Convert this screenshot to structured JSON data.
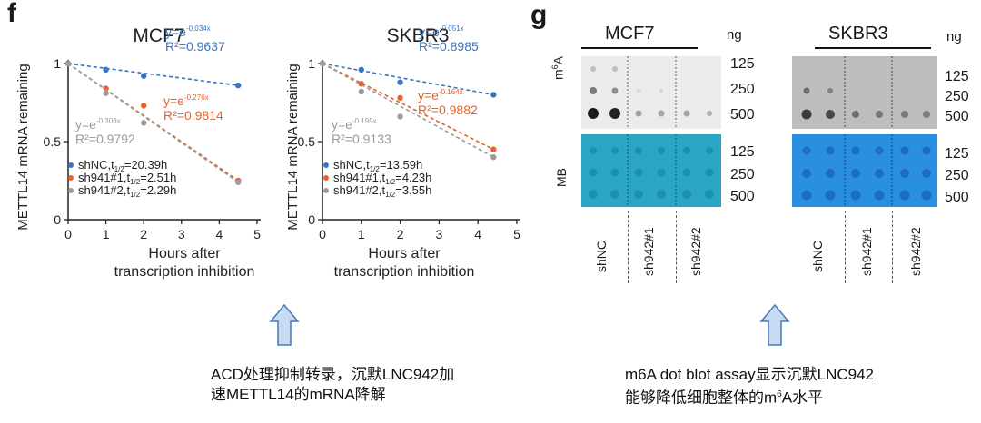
{
  "panel_f": {
    "letter": "f",
    "shared_ylabel": "METTL14 mRNA remaining",
    "shared_xlabel": [
      "Hours after",
      "transcription inhibition"
    ]
  },
  "panel_g": {
    "letter": "g",
    "unit": "ng",
    "row_labels": {
      "m6a_prefix": "m",
      "m6a_sup": "6",
      "m6a_suffix": "A",
      "mb": "MB"
    },
    "amounts": [
      "125",
      "250",
      "500"
    ],
    "blots": [
      {
        "title": "MCF7",
        "lanes": [
          "shNC",
          "sh942#1",
          "sh942#2"
        ]
      },
      {
        "title": "SKBR3",
        "lanes": [
          "shNC",
          "sh942#1",
          "sh942#2"
        ]
      }
    ]
  },
  "captions": {
    "left": [
      "ACD处理抑制转录，沉默LNC942加",
      "速METTL14的mRNA降解"
    ],
    "right_line1": "m6A dot blot assay显示沉默LNC942",
    "right_line2_pre": "能够降低细胞整体的m",
    "right_line2_sup": "6",
    "right_line2_post": "A水平"
  },
  "colors": {
    "shNC": "#3a74c4",
    "sh1": "#e8622a",
    "sh2": "#9b9b9b",
    "arrow_fill": "#c7dbf2",
    "arrow_stroke": "#4a78b8",
    "blot_bg": "#e7e7e7",
    "mb_bg": "#2fa9c6"
  },
  "chart_data": [
    {
      "type": "scatter",
      "title": "MCF7",
      "xlabel": "Hours after transcription inhibition",
      "ylabel": "METTL14 mRNA remaining",
      "xlim": [
        0,
        5
      ],
      "ylim": [
        0,
        1
      ],
      "xticks": [
        "0",
        "1",
        "2",
        "3",
        "4",
        "5"
      ],
      "yticks": [
        "0",
        "0.5",
        "1"
      ],
      "series": [
        {
          "name": "shNC",
          "x": [
            0,
            1,
            2,
            4.5
          ],
          "y": [
            1.0,
            0.96,
            0.92,
            0.86
          ],
          "eq_base": "y=e",
          "eq_exp": "-0.034x",
          "r2": "R²=0.9637",
          "legend_pre": "shNC,t",
          "legend_sub": "1/2",
          "legend_post": "=20.39h"
        },
        {
          "name": "sh941#1",
          "x": [
            0,
            1,
            2,
            4.5
          ],
          "y": [
            1.0,
            0.84,
            0.73,
            0.25
          ],
          "eq_base": "y=e",
          "eq_exp": "-0.276x",
          "r2": "R²=0.9814",
          "legend_pre": "sh941#1,t",
          "legend_sub": "1/2",
          "legend_post": "=2.51h"
        },
        {
          "name": "sh941#2",
          "x": [
            0,
            1,
            2,
            4.5
          ],
          "y": [
            1.0,
            0.81,
            0.62,
            0.24
          ],
          "eq_base": "y=e",
          "eq_exp": "-0.303x",
          "r2": "R²=0.9792",
          "legend_pre": "sh941#2,t",
          "legend_sub": "1/2",
          "legend_post": "=2.29h"
        }
      ]
    },
    {
      "type": "scatter",
      "title": "SKBR3",
      "xlabel": "Hours after transcription inhibition",
      "ylabel": "METTL14 mRNA remaining",
      "xlim": [
        0,
        5
      ],
      "ylim": [
        0,
        1
      ],
      "xticks": [
        "0",
        "1",
        "2",
        "3",
        "4",
        "5"
      ],
      "yticks": [
        "0",
        "0.5",
        "1"
      ],
      "series": [
        {
          "name": "shNC",
          "x": [
            0,
            1,
            2,
            4.4
          ],
          "y": [
            1.0,
            0.96,
            0.88,
            0.8
          ],
          "eq_base": "y=e",
          "eq_exp": "-0.051x",
          "r2": "R²=0.8985",
          "legend_pre": "shNC,t",
          "legend_sub": "1/2",
          "legend_post": "=13.59h"
        },
        {
          "name": "sh941#1",
          "x": [
            0,
            1,
            2,
            4.4
          ],
          "y": [
            1.0,
            0.87,
            0.78,
            0.45
          ],
          "eq_base": "y=e",
          "eq_exp": "-0.164x",
          "r2": "R²=0.9882",
          "legend_pre": "sh941#1,t",
          "legend_sub": "1/2",
          "legend_post": "=4.23h"
        },
        {
          "name": "sh941#2",
          "x": [
            0,
            1,
            2,
            4.4
          ],
          "y": [
            1.0,
            0.82,
            0.66,
            0.4
          ],
          "eq_base": "y=e",
          "eq_exp": "-0.195x",
          "r2": "R²=0.9133",
          "legend_pre": "sh941#2,t",
          "legend_sub": "1/2",
          "legend_post": "=3.55h"
        }
      ]
    }
  ]
}
